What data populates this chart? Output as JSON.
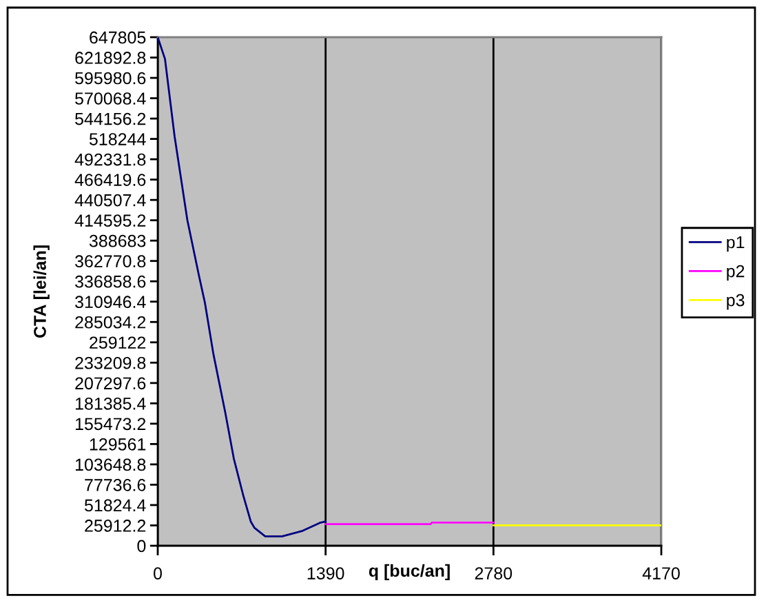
{
  "chart_data": {
    "type": "line",
    "xlabel": "q [buc/an]",
    "ylabel": "CTA [lei/an]",
    "xlim": [
      0,
      4170
    ],
    "xticks": [
      0,
      1390,
      2780,
      4170
    ],
    "ylim": [
      0,
      647805
    ],
    "yticks": [
      0,
      25912.2,
      51824.4,
      77736.6,
      103648.8,
      129561,
      155473.2,
      181385.4,
      207297.6,
      233209.8,
      259122,
      285034.2,
      310946.4,
      336858.6,
      362770.8,
      388683,
      414595.2,
      440507.4,
      466419.6,
      492331.8,
      518244,
      544156.2,
      570068.4,
      595980.6,
      621892.8,
      647805
    ],
    "grid": "x",
    "legend": "right",
    "marker": "none",
    "line_style": "solid",
    "series": [
      {
        "name": "p1",
        "color": "#000080",
        "x": [
          0,
          60,
          140,
          245,
          340,
          390,
          460,
          560,
          630,
          710,
          770,
          800,
          890,
          1030,
          1200,
          1340,
          1390
        ],
        "values": [
          647805,
          620000,
          521000,
          415000,
          345000,
          310000,
          245000,
          169000,
          111000,
          63000,
          31000,
          23000,
          12000,
          12000,
          19000,
          29000,
          31000
        ]
      },
      {
        "name": "p2",
        "color": "#ff00ff",
        "x": [
          1390,
          2260,
          2270,
          2780
        ],
        "values": [
          27500,
          27500,
          29500,
          29500
        ]
      },
      {
        "name": "p3",
        "color": "#ffff00",
        "x": [
          2780,
          4170
        ],
        "values": [
          26000,
          26000
        ]
      }
    ]
  }
}
